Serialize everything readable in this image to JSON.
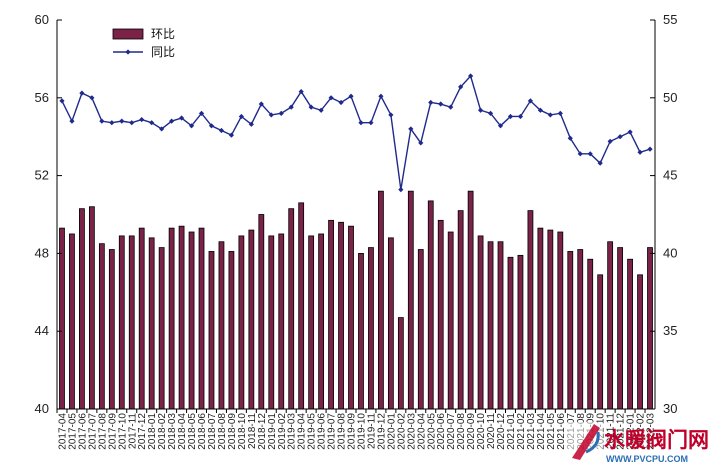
{
  "chart_data": {
    "type": "bar+line",
    "title": "",
    "left_axis": {
      "ylim": [
        40,
        60
      ],
      "ticks": [
        40,
        44,
        48,
        52,
        56,
        60
      ]
    },
    "right_axis": {
      "ylim": [
        30,
        55
      ],
      "ticks": [
        30,
        35,
        40,
        45,
        50,
        55
      ]
    },
    "legend": {
      "position": "top-left",
      "entries": [
        "环比",
        "同比"
      ]
    },
    "grid": false,
    "categories": [
      "2017-04",
      "2017-05",
      "2017-06",
      "2017-07",
      "2017-08",
      "2017-09",
      "2017-10",
      "2017-11",
      "2017-12",
      "2018-01",
      "2018-02",
      "2018-03",
      "2018-04",
      "2018-05",
      "2018-06",
      "2018-07",
      "2018-08",
      "2018-09",
      "2018-10",
      "2018-11",
      "2018-12",
      "2019-01",
      "2019-02",
      "2019-03",
      "2019-04",
      "2019-05",
      "2019-06",
      "2019-07",
      "2019-08",
      "2019-09",
      "2019-10",
      "2019-11",
      "2019-12",
      "2020-01",
      "2020-02",
      "2020-03",
      "2020-04",
      "2020-05",
      "2020-06",
      "2020-07",
      "2020-08",
      "2020-09",
      "2020-10",
      "2020-11",
      "2020-12",
      "2021-01",
      "2021-02",
      "2021-03",
      "2021-04",
      "2021-05",
      "2021-06",
      "2021-07",
      "2021-08",
      "2021-09",
      "2021-10",
      "2021-11",
      "2021-12",
      "2022-01",
      "2022-02",
      "2022-03"
    ],
    "series": [
      {
        "name": "环比",
        "type": "bar",
        "axis": "left",
        "color": "#7B2248",
        "values": [
          49.3,
          49.0,
          50.3,
          50.4,
          48.5,
          48.2,
          48.9,
          48.9,
          49.3,
          48.8,
          48.3,
          49.3,
          49.4,
          49.1,
          49.3,
          48.1,
          48.6,
          48.1,
          48.9,
          49.2,
          50.0,
          48.9,
          49.0,
          50.3,
          50.6,
          48.9,
          49.0,
          49.7,
          49.6,
          49.4,
          48.0,
          48.3,
          51.2,
          48.8,
          44.7,
          51.2,
          48.2,
          50.7,
          49.7,
          49.1,
          50.2,
          51.2,
          48.9,
          48.6,
          48.6,
          47.8,
          47.9,
          50.2,
          49.3,
          49.2,
          49.1,
          48.1,
          48.2,
          47.7,
          46.9,
          48.6,
          48.3,
          47.7,
          46.9,
          48.3
        ]
      },
      {
        "name": "同比",
        "type": "line",
        "axis": "right",
        "color": "#1F2A8C",
        "values": [
          49.8,
          48.5,
          50.3,
          50.0,
          48.5,
          48.4,
          48.5,
          48.4,
          48.6,
          48.4,
          48.0,
          48.5,
          48.7,
          48.2,
          49.0,
          48.2,
          47.9,
          47.6,
          48.8,
          48.3,
          49.6,
          48.9,
          49.0,
          49.4,
          50.4,
          49.4,
          49.2,
          50.0,
          49.7,
          50.1,
          48.4,
          48.4,
          50.1,
          48.9,
          44.1,
          48.0,
          47.1,
          49.7,
          49.6,
          49.4,
          50.7,
          51.4,
          49.2,
          49.0,
          48.2,
          48.8,
          48.8,
          49.8,
          49.2,
          48.9,
          49.0,
          47.4,
          46.4,
          46.4,
          45.8,
          47.2,
          47.5,
          47.8,
          46.5,
          46.7
        ]
      }
    ]
  },
  "watermark": {
    "text": "水暖阀门网",
    "url_text": "WWW.PVCPU.COM",
    "accent": "#C0002A"
  }
}
